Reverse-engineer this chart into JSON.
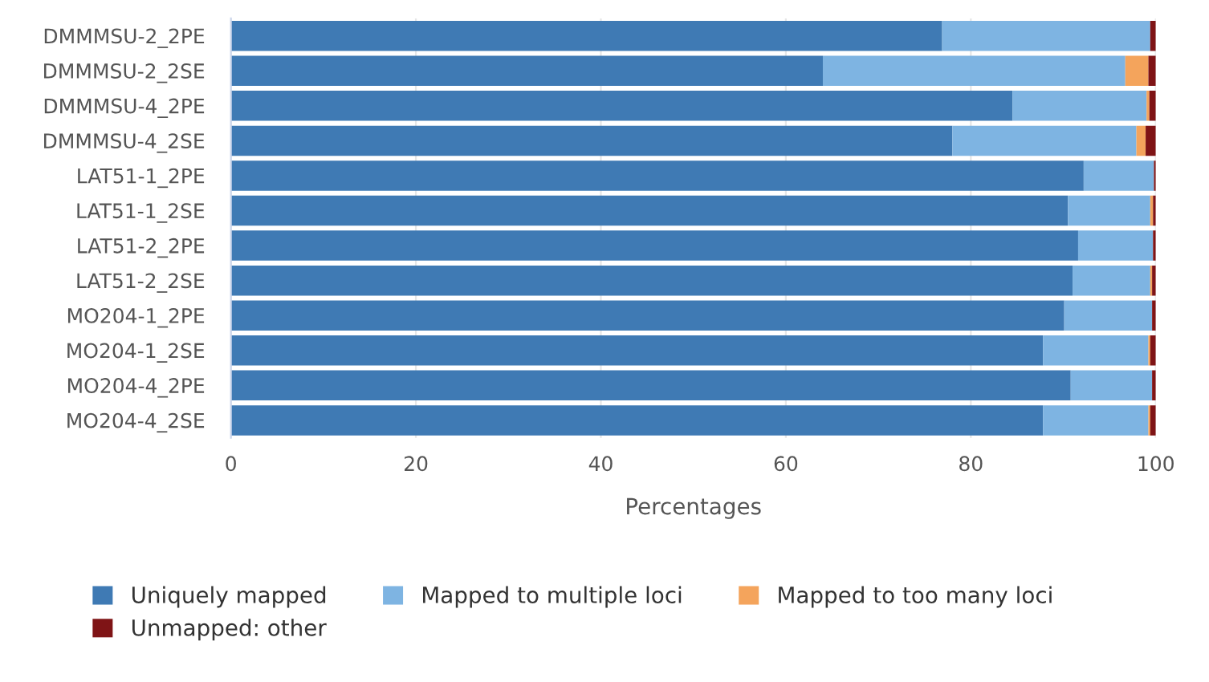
{
  "chart_data": {
    "type": "bar",
    "orientation": "horizontal",
    "stacked": true,
    "categories": [
      "DMMMSU-2_2PE",
      "DMMMSU-2_2SE",
      "DMMMSU-4_2PE",
      "DMMMSU-4_2SE",
      "LAT51-1_2PE",
      "LAT51-1_2SE",
      "LAT51-2_2PE",
      "LAT51-2_2SE",
      "MO204-1_2PE",
      "MO204-1_2SE",
      "MO204-4_2PE",
      "MO204-4_2SE"
    ],
    "series": [
      {
        "name": "Uniquely mapped",
        "color": "#3f7ab4",
        "values": [
          76.9,
          64.0,
          84.5,
          78.0,
          92.2,
          90.5,
          91.6,
          91.0,
          90.1,
          87.8,
          90.8,
          87.8
        ]
      },
      {
        "name": "Mapped to multiple loci",
        "color": "#7eb4e2",
        "values": [
          22.5,
          32.7,
          14.5,
          19.9,
          7.6,
          8.9,
          8.1,
          8.4,
          9.5,
          11.4,
          8.8,
          11.4
        ]
      },
      {
        "name": "Mapped to too many loci",
        "color": "#f4a45c",
        "values": [
          null,
          2.5,
          0.3,
          1.0,
          null,
          0.3,
          null,
          0.2,
          null,
          0.2,
          null,
          0.2
        ]
      },
      {
        "name": "Unmapped: other",
        "color": "#7f1416",
        "values": [
          0.6,
          0.8,
          0.7,
          1.1,
          0.2,
          0.3,
          0.3,
          0.4,
          0.4,
          0.6,
          0.4,
          0.6
        ]
      }
    ],
    "xlabel": "Percentages",
    "xlim": [
      0,
      100
    ],
    "xticks": [
      0,
      20,
      40,
      60,
      80,
      100
    ],
    "grid": "x",
    "legend": "bottom"
  }
}
